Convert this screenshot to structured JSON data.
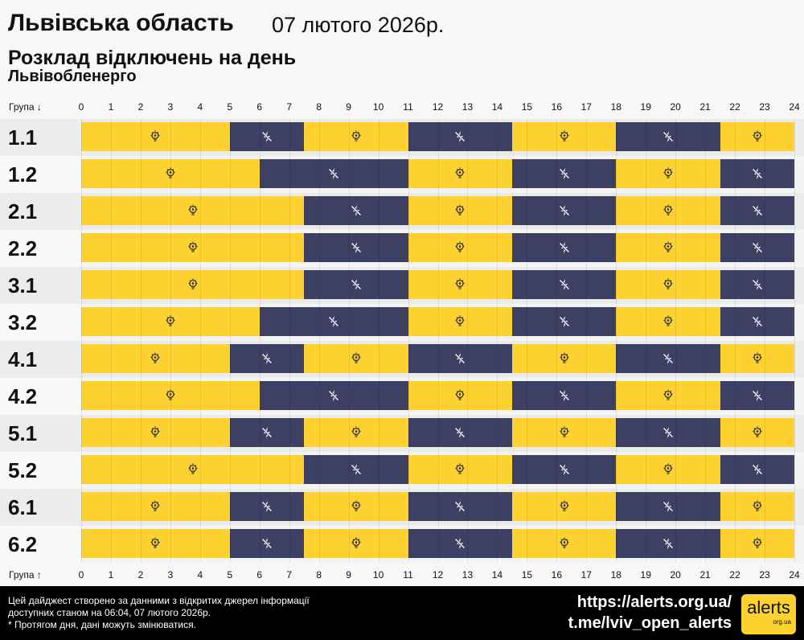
{
  "header": {
    "title": "Львівська область",
    "date": "07 лютого 2026р.",
    "subtitle": "Розклад відключень на день",
    "provider": "Львівобленерго"
  },
  "chart_data": {
    "type": "timeline",
    "xlabel_top": "Група ↓",
    "xlabel_bottom": "Група ↑",
    "x_ticks": [
      "0",
      "1",
      "2",
      "3",
      "4",
      "5",
      "6",
      "7",
      "8",
      "9",
      "10",
      "11",
      "12",
      "13",
      "14",
      "15",
      "16",
      "17",
      "18",
      "19",
      "20",
      "21",
      "22",
      "23",
      "24"
    ],
    "xlim": [
      0,
      24
    ],
    "states": {
      "on": {
        "color": "#fdd130",
        "icon": "lightbulb-icon"
      },
      "off": {
        "color": "#3d3f63",
        "icon": "power-off-icon"
      }
    },
    "groups": [
      {
        "name": "1.1",
        "segments": [
          [
            0,
            5,
            "on"
          ],
          [
            5,
            7.5,
            "off"
          ],
          [
            7.5,
            11,
            "on"
          ],
          [
            11,
            14.5,
            "off"
          ],
          [
            14.5,
            18,
            "on"
          ],
          [
            18,
            21.5,
            "off"
          ],
          [
            21.5,
            24,
            "on"
          ]
        ]
      },
      {
        "name": "1.2",
        "segments": [
          [
            0,
            6,
            "on"
          ],
          [
            6,
            11,
            "off"
          ],
          [
            11,
            14.5,
            "on"
          ],
          [
            14.5,
            18,
            "off"
          ],
          [
            18,
            21.5,
            "on"
          ],
          [
            21.5,
            24,
            "off"
          ]
        ]
      },
      {
        "name": "2.1",
        "segments": [
          [
            0,
            7.5,
            "on"
          ],
          [
            7.5,
            11,
            "off"
          ],
          [
            11,
            14.5,
            "on"
          ],
          [
            14.5,
            18,
            "off"
          ],
          [
            18,
            21.5,
            "on"
          ],
          [
            21.5,
            24,
            "off"
          ]
        ]
      },
      {
        "name": "2.2",
        "segments": [
          [
            0,
            7.5,
            "on"
          ],
          [
            7.5,
            11,
            "off"
          ],
          [
            11,
            14.5,
            "on"
          ],
          [
            14.5,
            18,
            "off"
          ],
          [
            18,
            21.5,
            "on"
          ],
          [
            21.5,
            24,
            "off"
          ]
        ]
      },
      {
        "name": "3.1",
        "segments": [
          [
            0,
            7.5,
            "on"
          ],
          [
            7.5,
            11,
            "off"
          ],
          [
            11,
            14.5,
            "on"
          ],
          [
            14.5,
            18,
            "off"
          ],
          [
            18,
            21.5,
            "on"
          ],
          [
            21.5,
            24,
            "off"
          ]
        ]
      },
      {
        "name": "3.2",
        "segments": [
          [
            0,
            6,
            "on"
          ],
          [
            6,
            11,
            "off"
          ],
          [
            11,
            14.5,
            "on"
          ],
          [
            14.5,
            18,
            "off"
          ],
          [
            18,
            21.5,
            "on"
          ],
          [
            21.5,
            24,
            "off"
          ]
        ]
      },
      {
        "name": "4.1",
        "segments": [
          [
            0,
            5,
            "on"
          ],
          [
            5,
            7.5,
            "off"
          ],
          [
            7.5,
            11,
            "on"
          ],
          [
            11,
            14.5,
            "off"
          ],
          [
            14.5,
            18,
            "on"
          ],
          [
            18,
            21.5,
            "off"
          ],
          [
            21.5,
            24,
            "on"
          ]
        ]
      },
      {
        "name": "4.2",
        "segments": [
          [
            0,
            6,
            "on"
          ],
          [
            6,
            11,
            "off"
          ],
          [
            11,
            14.5,
            "on"
          ],
          [
            14.5,
            18,
            "off"
          ],
          [
            18,
            21.5,
            "on"
          ],
          [
            21.5,
            24,
            "off"
          ]
        ]
      },
      {
        "name": "5.1",
        "segments": [
          [
            0,
            5,
            "on"
          ],
          [
            5,
            7.5,
            "off"
          ],
          [
            7.5,
            11,
            "on"
          ],
          [
            11,
            14.5,
            "off"
          ],
          [
            14.5,
            18,
            "on"
          ],
          [
            18,
            21.5,
            "off"
          ],
          [
            21.5,
            24,
            "on"
          ]
        ]
      },
      {
        "name": "5.2",
        "segments": [
          [
            0,
            7.5,
            "on"
          ],
          [
            7.5,
            11,
            "off"
          ],
          [
            11,
            14.5,
            "on"
          ],
          [
            14.5,
            18,
            "off"
          ],
          [
            18,
            21.5,
            "on"
          ],
          [
            21.5,
            24,
            "off"
          ]
        ]
      },
      {
        "name": "6.1",
        "segments": [
          [
            0,
            5,
            "on"
          ],
          [
            5,
            7.5,
            "off"
          ],
          [
            7.5,
            11,
            "on"
          ],
          [
            11,
            14.5,
            "off"
          ],
          [
            14.5,
            18,
            "on"
          ],
          [
            18,
            21.5,
            "off"
          ],
          [
            21.5,
            24,
            "on"
          ]
        ]
      },
      {
        "name": "6.2",
        "segments": [
          [
            0,
            5,
            "on"
          ],
          [
            5,
            7.5,
            "off"
          ],
          [
            7.5,
            11,
            "on"
          ],
          [
            11,
            14.5,
            "off"
          ],
          [
            14.5,
            18,
            "on"
          ],
          [
            18,
            21.5,
            "off"
          ],
          [
            21.5,
            24,
            "on"
          ]
        ]
      }
    ]
  },
  "footer": {
    "note1": "Цей дайджест створено за данними з відкритих джерел інформації",
    "note2": "доступних станом на 06:04, 07 лютого 2026р.",
    "note3": "* Протягом дня, дані можуть змінюватися.",
    "link1": "https://alerts.org.ua/",
    "link2": "t.me/lviv_open_alerts",
    "logo_text": "alerts",
    "logo_sub": "org.ua"
  }
}
